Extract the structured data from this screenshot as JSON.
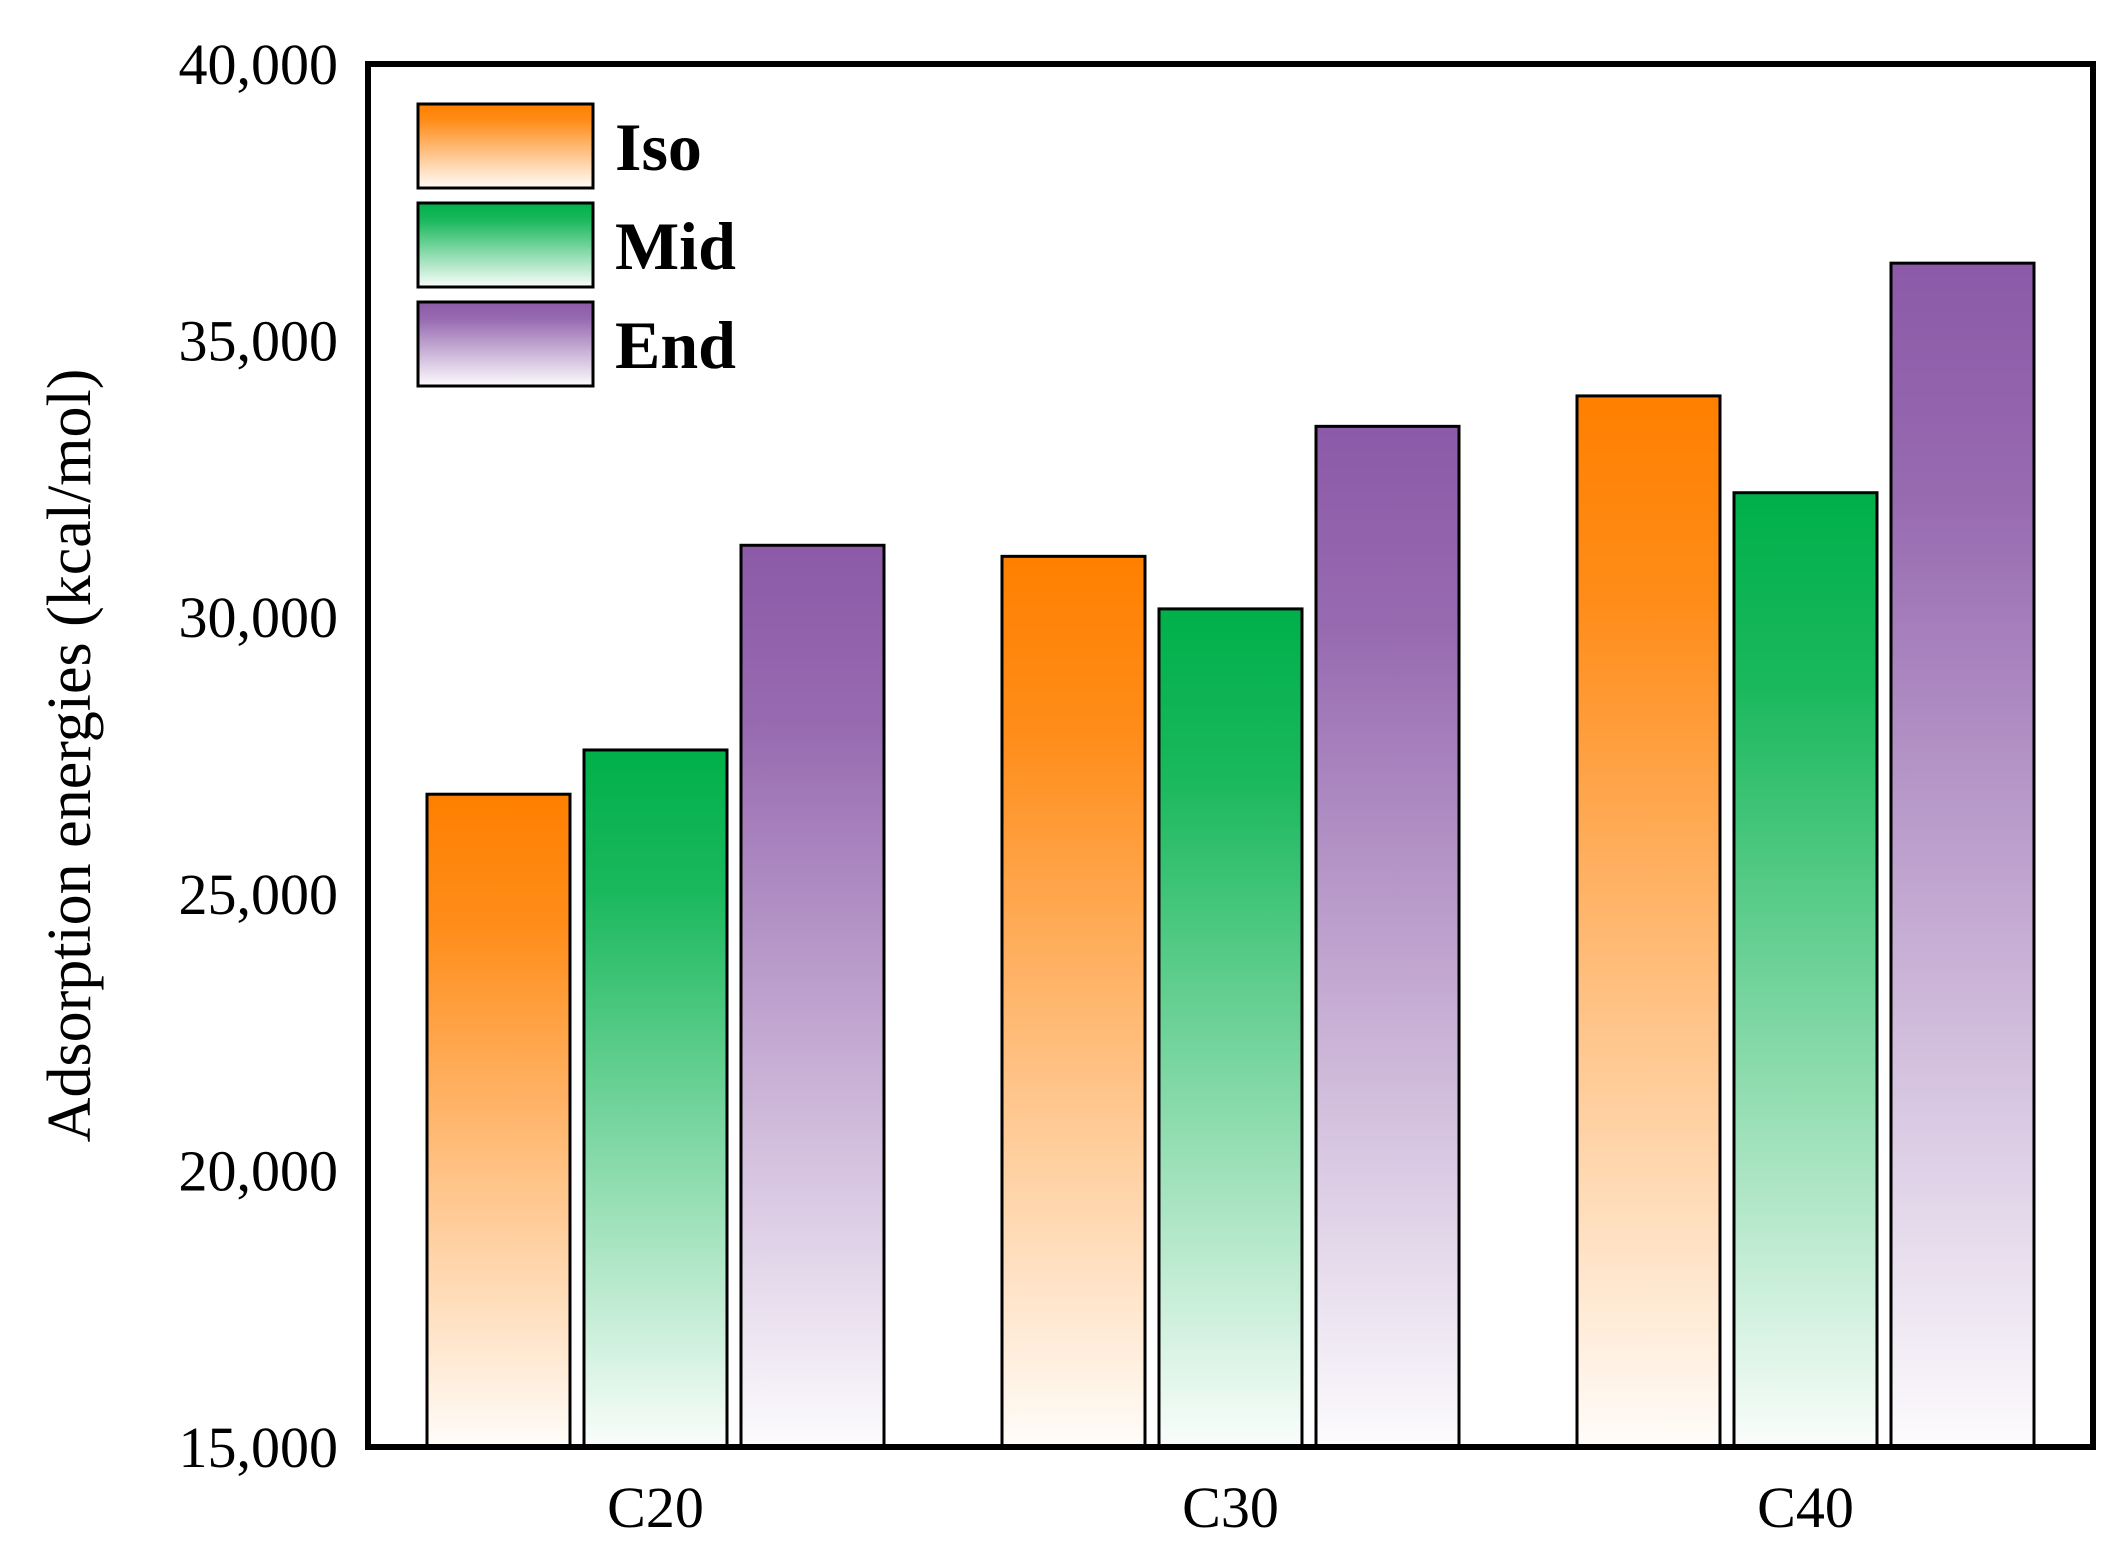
{
  "chart_data": {
    "type": "bar",
    "title": "",
    "xlabel": "",
    "ylabel": "Adsorption energies (kcal/mol)",
    "ylim": [
      15000,
      40000
    ],
    "yticks": [
      15000,
      20000,
      25000,
      30000,
      35000,
      40000
    ],
    "ytick_labels": [
      "15,000",
      "20,000",
      "25,000",
      "30,000",
      "35,000",
      "40,000"
    ],
    "categories": [
      "C20",
      "C30",
      "C40"
    ],
    "series": [
      {
        "name": "Iso",
        "color": "#ff8000",
        "values": [
          26800,
          31100,
          34000
        ]
      },
      {
        "name": "Mid",
        "color": "#00b04a",
        "values": [
          27600,
          30150,
          32250
        ]
      },
      {
        "name": "End",
        "color": "#8c5aa8",
        "values": [
          31300,
          33450,
          36400
        ]
      }
    ],
    "legend_position": "top-left",
    "grid": false
  }
}
